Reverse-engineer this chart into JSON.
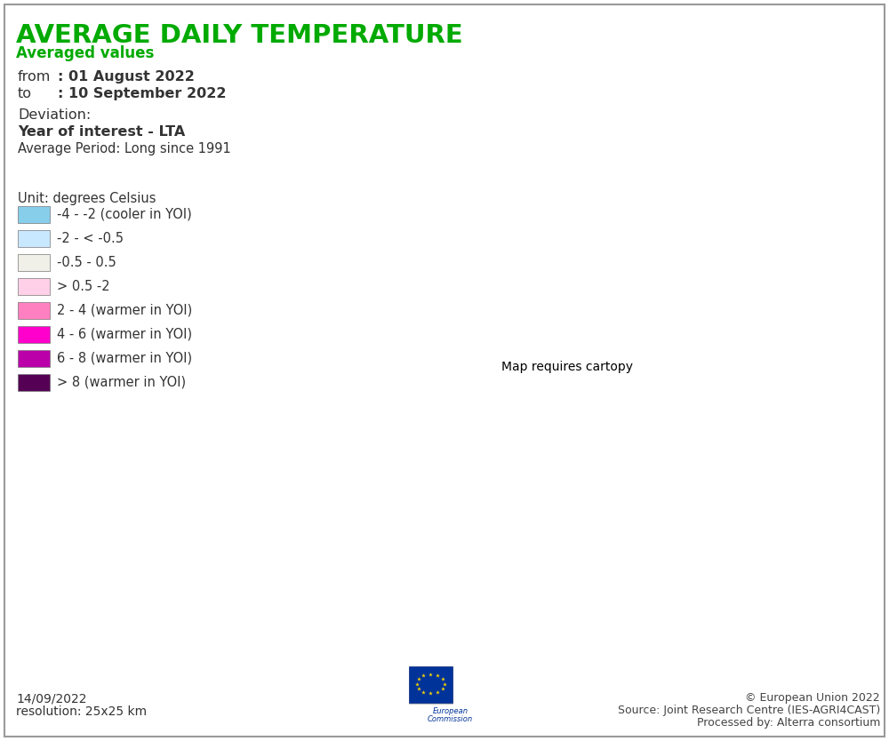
{
  "title": "AVERAGE DAILY TEMPERATURE",
  "subtitle": "Averaged values",
  "from_label": "from",
  "from_value": ": 01 August 2022",
  "to_label": "to",
  "to_value": ": 10 September 2022",
  "deviation_label": "Deviation:",
  "deviation_type": "Year of interest - LTA",
  "avg_period": "Average Period: Long since 1991",
  "unit_label": "Unit: degrees Celsius",
  "legend_items": [
    {
      "color": "#87CEEB",
      "label": "-4 - -2 (cooler in YOI)"
    },
    {
      "color": "#C8E8FF",
      "label": "-2 - < -0.5"
    },
    {
      "color": "#F0F0E8",
      "label": "-0.5 - 0.5"
    },
    {
      "color": "#FFD0E8",
      "label": "> 0.5 -2"
    },
    {
      "color": "#FF80C0",
      "label": "2 - 4 (warmer in YOI)"
    },
    {
      "color": "#FF00CC",
      "label": "4 - 6 (warmer in YOI)"
    },
    {
      "color": "#BB00AA",
      "label": "6 - 8 (warmer in YOI)"
    },
    {
      "color": "#550055",
      "label": "> 8 (warmer in YOI)"
    }
  ],
  "date_label": "14/09/2022",
  "resolution_label": "resolution: 25x25 km",
  "copyright": "© European Union 2022",
  "source": "Source: Joint Research Centre (IES-AGRI4CAST)",
  "processed": "Processed by: Alterra consortium",
  "title_color": "#00AA00",
  "bg_color": "#FFFFFF",
  "border_color": "#AAAAAA",
  "text_color": "#333333"
}
